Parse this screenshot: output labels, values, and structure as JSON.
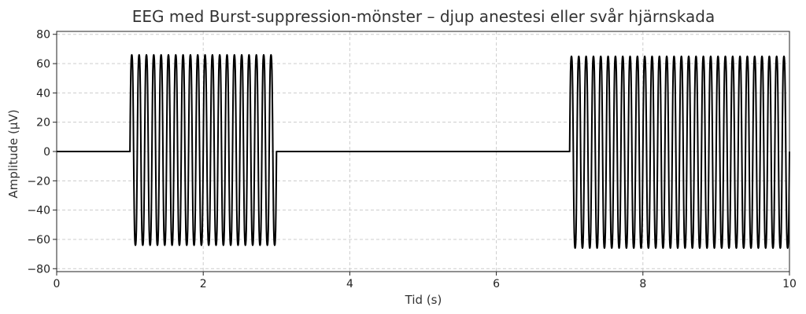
{
  "chart_data": {
    "type": "line",
    "title": "EEG med Burst-suppression-mönster – djup anestesi eller svår hjärnskada",
    "xlabel": "Tid (s)",
    "ylabel": "Amplitude (µV)",
    "xlim": [
      0,
      10
    ],
    "ylim": [
      -82,
      82
    ],
    "grid": true,
    "x_ticks": [
      0,
      2,
      4,
      6,
      8,
      10
    ],
    "x_tick_labels": [
      "0",
      "2",
      "4",
      "6",
      "8",
      "10"
    ],
    "y_ticks": [
      -80,
      -60,
      -40,
      -20,
      0,
      20,
      40,
      60,
      80
    ],
    "y_tick_labels": [
      "−80",
      "−60",
      "−40",
      "−20",
      "0",
      "20",
      "40",
      "60",
      "80"
    ],
    "series": [
      {
        "color": "#000000",
        "segments": [
          {
            "kind": "flat",
            "x_start": 0,
            "x_end": 1.0,
            "y": 0
          },
          {
            "kind": "burst",
            "x_start": 1.0,
            "x_end": 3.0,
            "frequency_hz": 10,
            "peak_amplitude": 72,
            "trough_amplitude": -70
          },
          {
            "kind": "flat",
            "x_start": 3.0,
            "x_end": 7.0,
            "y": 0
          },
          {
            "kind": "burst",
            "x_start": 7.0,
            "x_end": 10.0,
            "frequency_hz": 10,
            "peak_amplitude": 71,
            "trough_amplitude": -72
          }
        ]
      }
    ]
  }
}
